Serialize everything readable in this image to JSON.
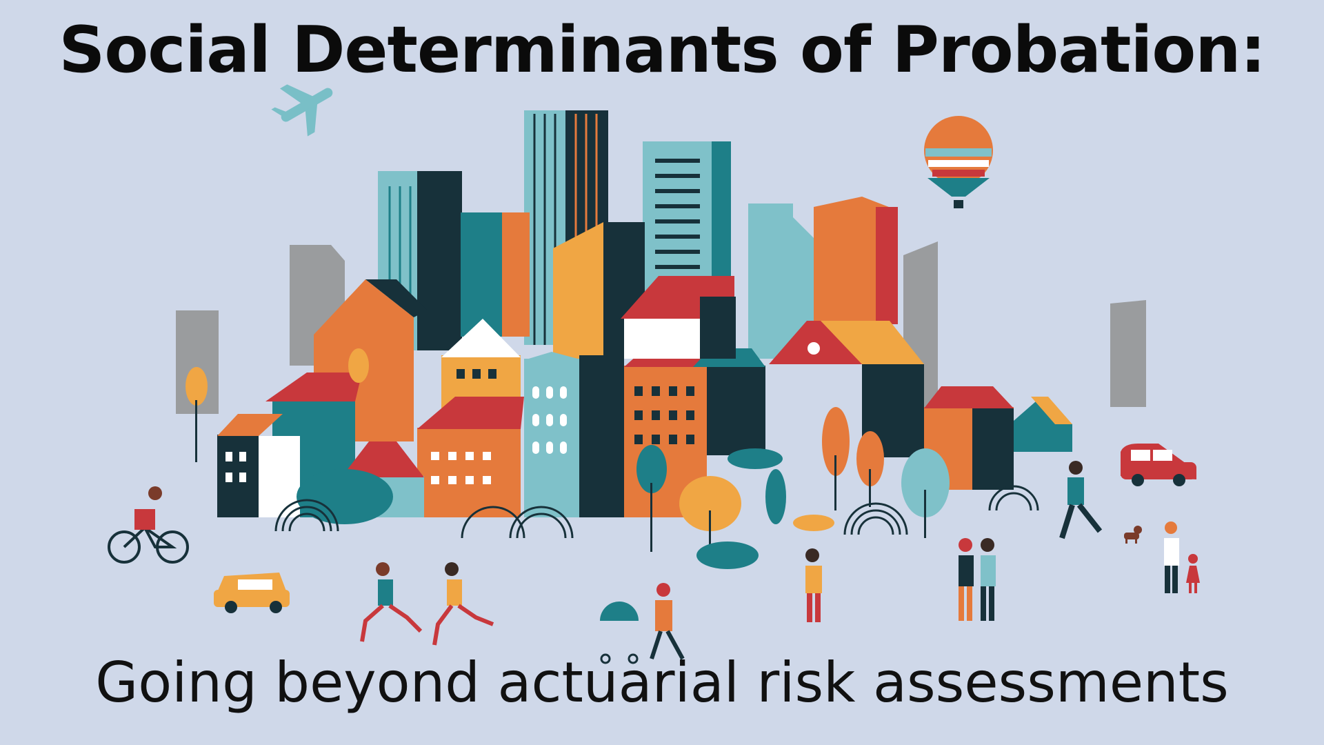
{
  "slide": {
    "title": "Social Determinants of Probation:",
    "subtitle": "Going beyond actuarial risk assessments"
  },
  "colors": {
    "background": "#cfd8e9",
    "teal": "#1e7f88",
    "light_teal": "#7fc1c9",
    "dark": "#17313a",
    "orange": "#e57a3c",
    "light_orange": "#f0a644",
    "red": "#c8383c",
    "grey": "#9a9c9e",
    "white": "#ffffff"
  },
  "illustration": {
    "theme": "flat-city-illustration",
    "elements": [
      "airplane-icon",
      "hot-air-balloon-icon",
      "skyline",
      "houses",
      "trees",
      "cyclist",
      "taxi-car",
      "runners",
      "stroller-walker",
      "pedestrians",
      "red-car",
      "dog",
      "parent-child"
    ]
  }
}
